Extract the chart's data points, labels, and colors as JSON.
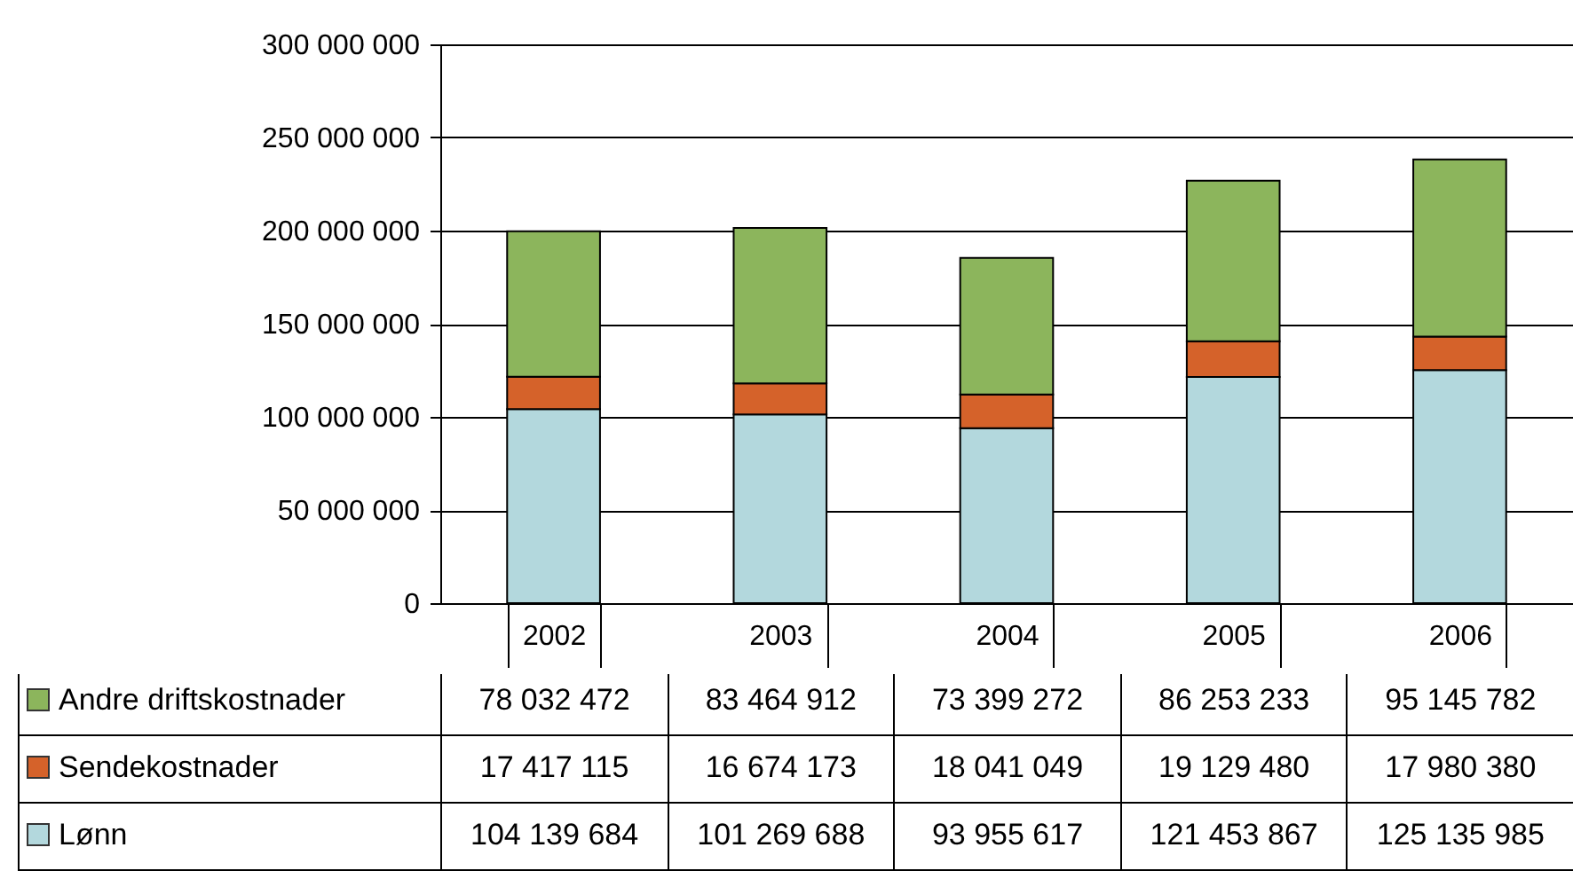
{
  "chart_data": {
    "type": "bar",
    "stacked": true,
    "categories": [
      "2002",
      "2003",
      "2004",
      "2005",
      "2006"
    ],
    "series": [
      {
        "name": "Lønn",
        "color": "#b3d8dd",
        "values": [
          104139684,
          101269688,
          93955617,
          121453867,
          125135985
        ]
      },
      {
        "name": "Sendekostnader",
        "color": "#d5622a",
        "values": [
          17417115,
          16674173,
          18041049,
          19129480,
          17980380
        ]
      },
      {
        "name": "Andre driftskostnader",
        "color": "#8cb55c",
        "values": [
          78032472,
          83464912,
          73399272,
          86253233,
          95145782
        ]
      }
    ],
    "ylim": [
      0,
      300000000
    ],
    "yticks": [
      {
        "value": 0,
        "label": "0"
      },
      {
        "value": 50000000,
        "label": "50 000 000"
      },
      {
        "value": 100000000,
        "label": "100 000 000"
      },
      {
        "value": 150000000,
        "label": "150 000 000"
      },
      {
        "value": 200000000,
        "label": "200 000 000"
      },
      {
        "value": 250000000,
        "label": "250 000 000"
      },
      {
        "value": 300000000,
        "label": "300 000 000"
      }
    ],
    "grid": "y",
    "legend": "bottom",
    "data_labels": true
  }
}
